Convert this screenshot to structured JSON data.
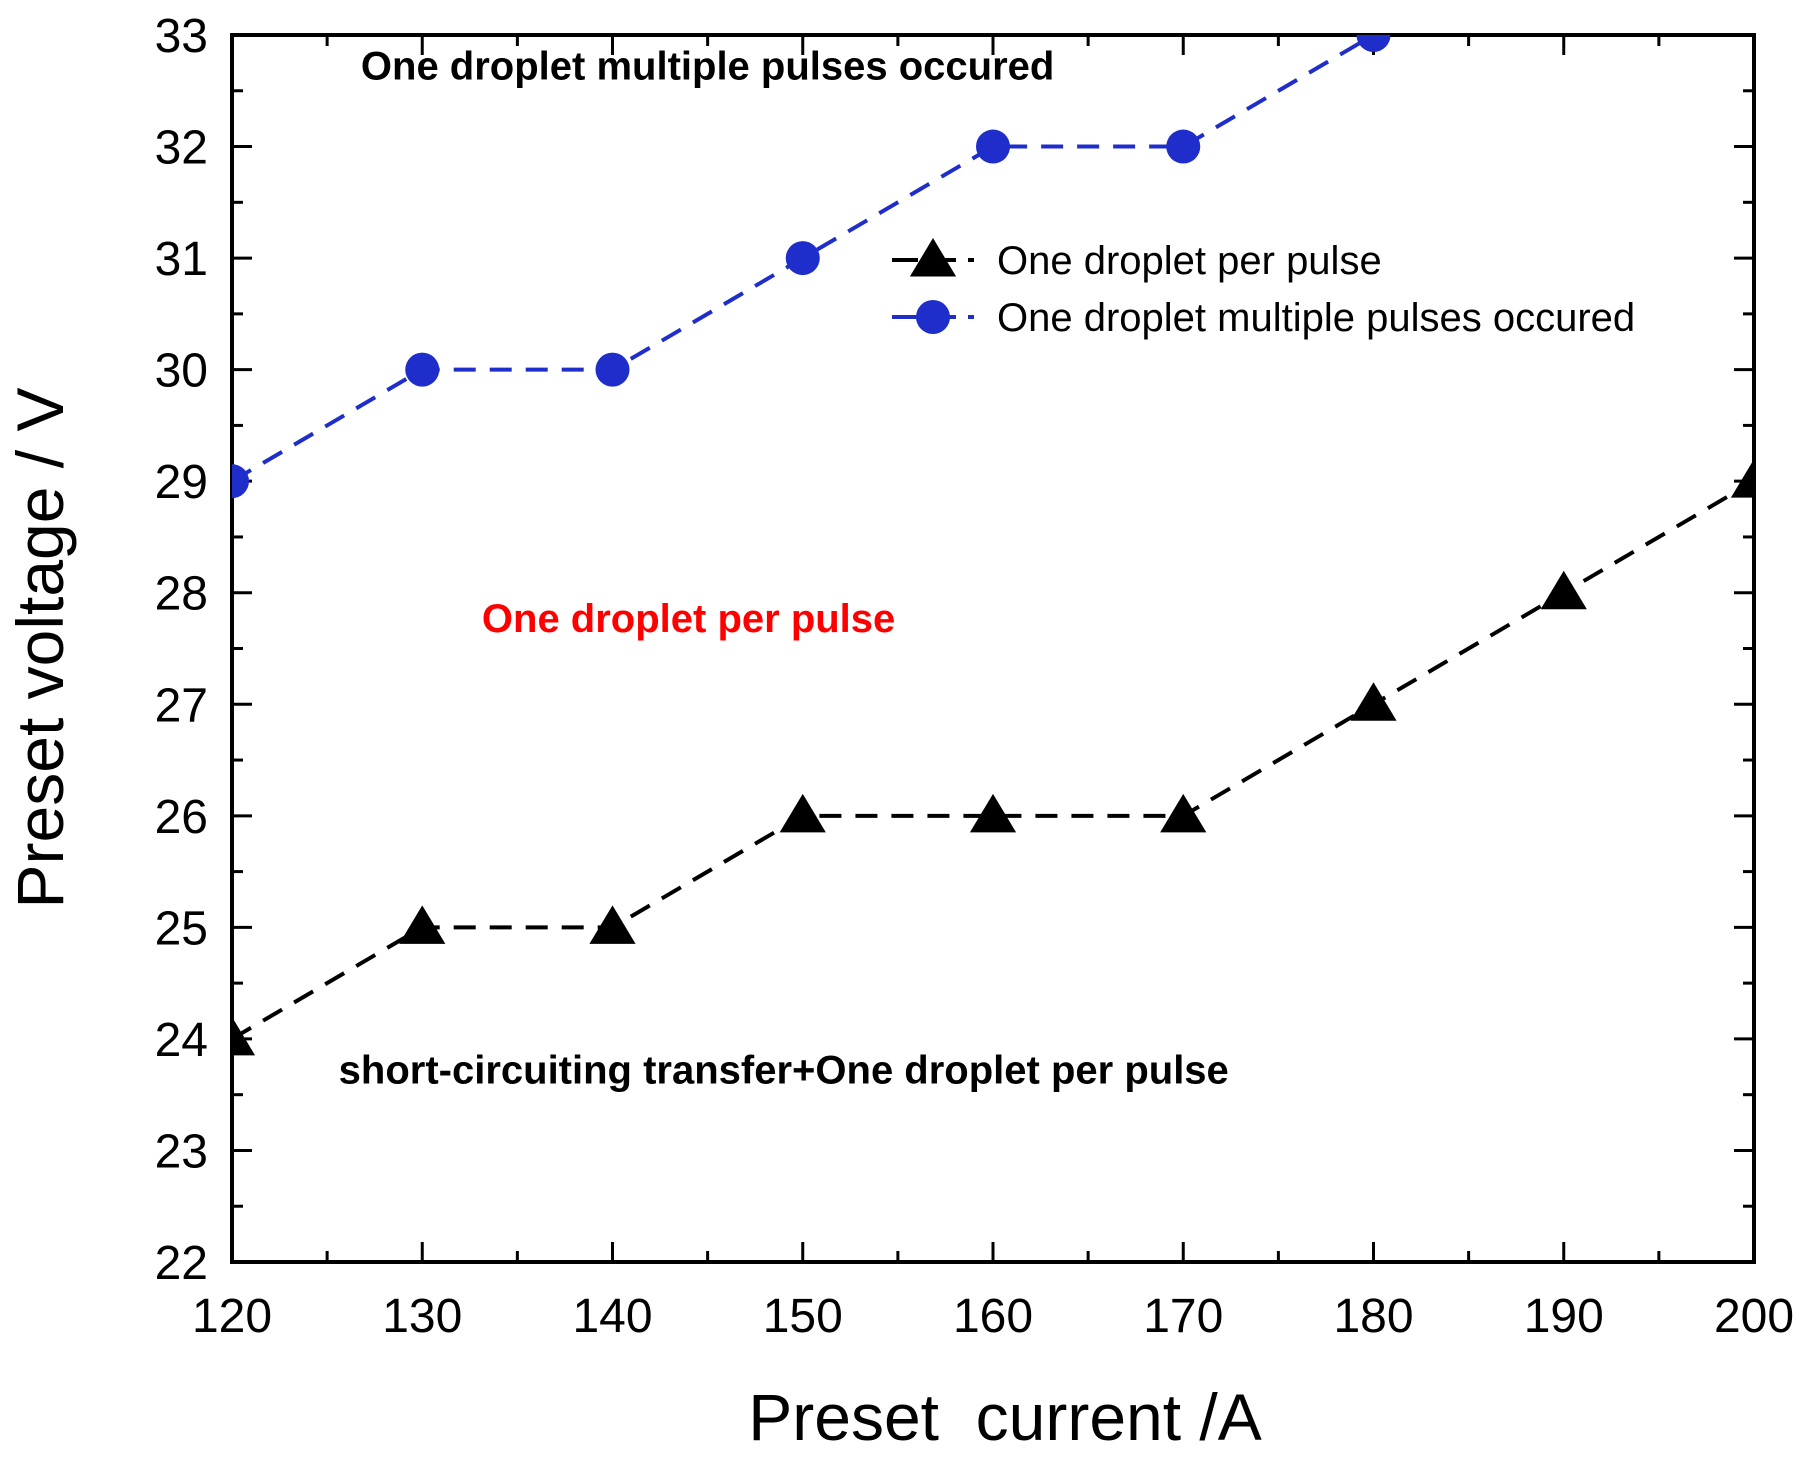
{
  "chart_data": {
    "type": "line",
    "title": "",
    "xlabel": "Preset  current /A",
    "ylabel": "Preset voltage / V",
    "xlim": [
      120,
      200
    ],
    "ylim": [
      22,
      33
    ],
    "x_ticks": [
      120,
      130,
      140,
      150,
      160,
      170,
      180,
      190,
      200
    ],
    "y_ticks": [
      22,
      23,
      24,
      25,
      26,
      27,
      28,
      29,
      30,
      31,
      32,
      33
    ],
    "x_tick_labels": [
      "120",
      "130",
      "140",
      "150",
      "160",
      "170",
      "180",
      "190",
      "200"
    ],
    "y_tick_labels": [
      "22",
      "23",
      "24",
      "25",
      "26",
      "27",
      "28",
      "29",
      "30",
      "31",
      "32",
      "33"
    ],
    "grid": false,
    "legend_position": "top-right",
    "series": [
      {
        "name": "One droplet per pulse",
        "marker": "triangle",
        "line_style": "dashed",
        "color": "#000000",
        "x": [
          120,
          130,
          140,
          150,
          160,
          170,
          180,
          190,
          200
        ],
        "y": [
          24,
          25,
          25,
          26,
          26,
          26,
          27,
          28,
          29
        ]
      },
      {
        "name": "One droplet multiple pulses occured",
        "marker": "circle",
        "line_style": "dashed",
        "color": "#1f2ecb",
        "x": [
          120,
          130,
          140,
          150,
          160,
          170,
          180
        ],
        "y": [
          29,
          30,
          30,
          31,
          32,
          32,
          33
        ]
      }
    ],
    "annotations": [
      {
        "text": "One droplet multiple pulses occured",
        "color": "#000000",
        "x": 145,
        "y": 32.6
      },
      {
        "text": "One droplet per pulse",
        "color": "#ff0000",
        "x": 144,
        "y": 27.65
      },
      {
        "text": "short-circuiting transfer+One droplet per pulse",
        "color": "#000000",
        "x": 149,
        "y": 23.6
      }
    ]
  }
}
